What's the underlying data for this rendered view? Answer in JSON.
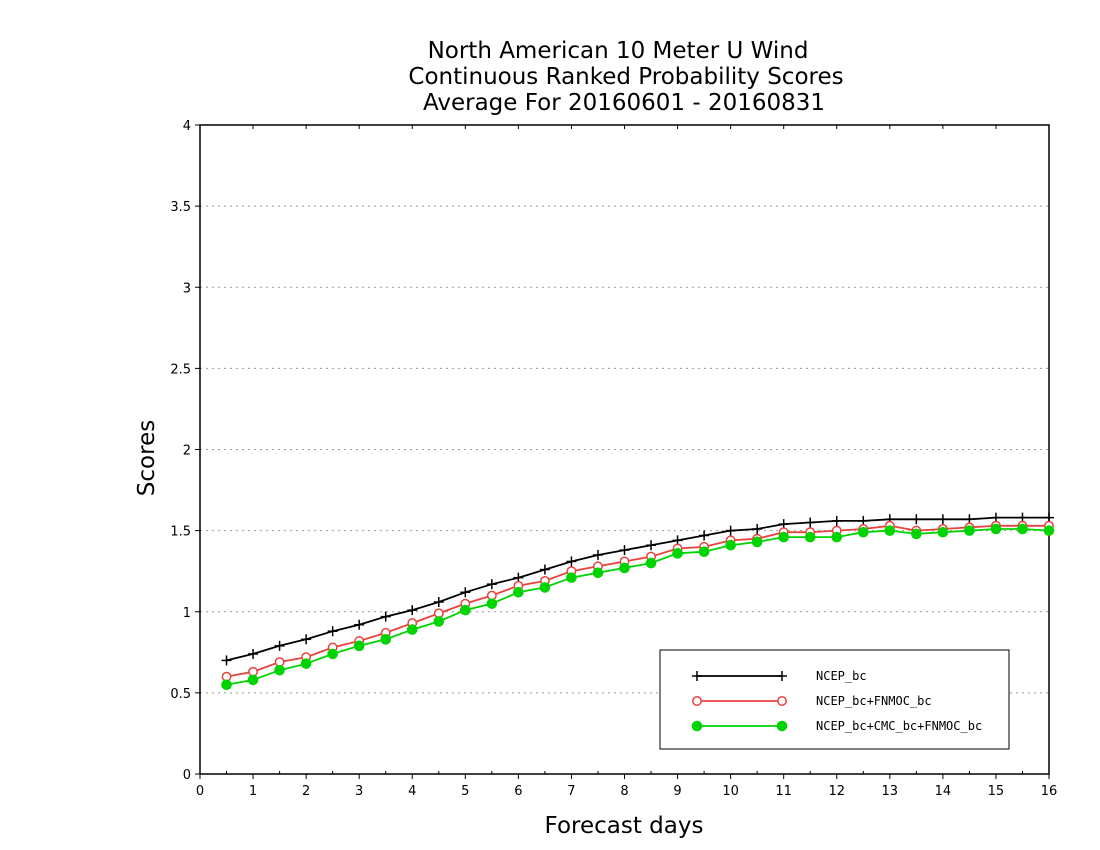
{
  "chart_data": {
    "type": "line",
    "title": [
      "North American 10 Meter U Wind",
      "Continuous Ranked Probability Scores",
      "Average For 20160601 - 20160831"
    ],
    "xlabel": "Forecast days",
    "ylabel": "Scores",
    "xlim": [
      0,
      16
    ],
    "ylim": [
      0,
      4
    ],
    "x_ticks": [
      "0",
      "1",
      "2",
      "3",
      "4",
      "5",
      "6",
      "7",
      "8",
      "9",
      "10",
      "11",
      "12",
      "13",
      "14",
      "15",
      "16"
    ],
    "y_ticks": [
      "0",
      "0.5",
      "1",
      "1.5",
      "2",
      "2.5",
      "3",
      "3.5",
      "4"
    ],
    "grid": "horizontal dotted",
    "legend_position": "bottom-right",
    "x": [
      0.5,
      1,
      1.5,
      2,
      2.5,
      3,
      3.5,
      4,
      4.5,
      5,
      5.5,
      6,
      6.5,
      7,
      7.5,
      8,
      8.5,
      9,
      9.5,
      10,
      10.5,
      11,
      11.5,
      12,
      12.5,
      13,
      13.5,
      14,
      14.5,
      15,
      15.5,
      16
    ],
    "series": [
      {
        "name": "NCEP_bc",
        "color": "#000000",
        "marker": "plus",
        "values": [
          0.7,
          0.74,
          0.79,
          0.83,
          0.88,
          0.92,
          0.97,
          1.01,
          1.06,
          1.12,
          1.17,
          1.21,
          1.26,
          1.31,
          1.35,
          1.38,
          1.41,
          1.44,
          1.47,
          1.5,
          1.51,
          1.54,
          1.55,
          1.56,
          1.56,
          1.57,
          1.57,
          1.57,
          1.57,
          1.58,
          1.58,
          1.58
        ]
      },
      {
        "name": "NCEP_bc+FNMOC_bc",
        "color": "#e8423f",
        "marker": "open-circle",
        "values": [
          0.6,
          0.63,
          0.69,
          0.72,
          0.78,
          0.82,
          0.87,
          0.93,
          0.99,
          1.05,
          1.1,
          1.16,
          1.19,
          1.25,
          1.28,
          1.31,
          1.34,
          1.39,
          1.4,
          1.44,
          1.45,
          1.49,
          1.49,
          1.5,
          1.51,
          1.53,
          1.5,
          1.51,
          1.52,
          1.53,
          1.53,
          1.53
        ]
      },
      {
        "name": "NCEP_bc+CMC_bc+FNMOC_bc",
        "color": "#00d400",
        "marker": "filled-circle",
        "values": [
          0.55,
          0.58,
          0.64,
          0.68,
          0.74,
          0.79,
          0.83,
          0.89,
          0.94,
          1.01,
          1.05,
          1.12,
          1.15,
          1.21,
          1.24,
          1.27,
          1.3,
          1.36,
          1.37,
          1.41,
          1.43,
          1.46,
          1.46,
          1.46,
          1.49,
          1.5,
          1.48,
          1.49,
          1.5,
          1.51,
          1.51,
          1.5
        ]
      }
    ]
  }
}
